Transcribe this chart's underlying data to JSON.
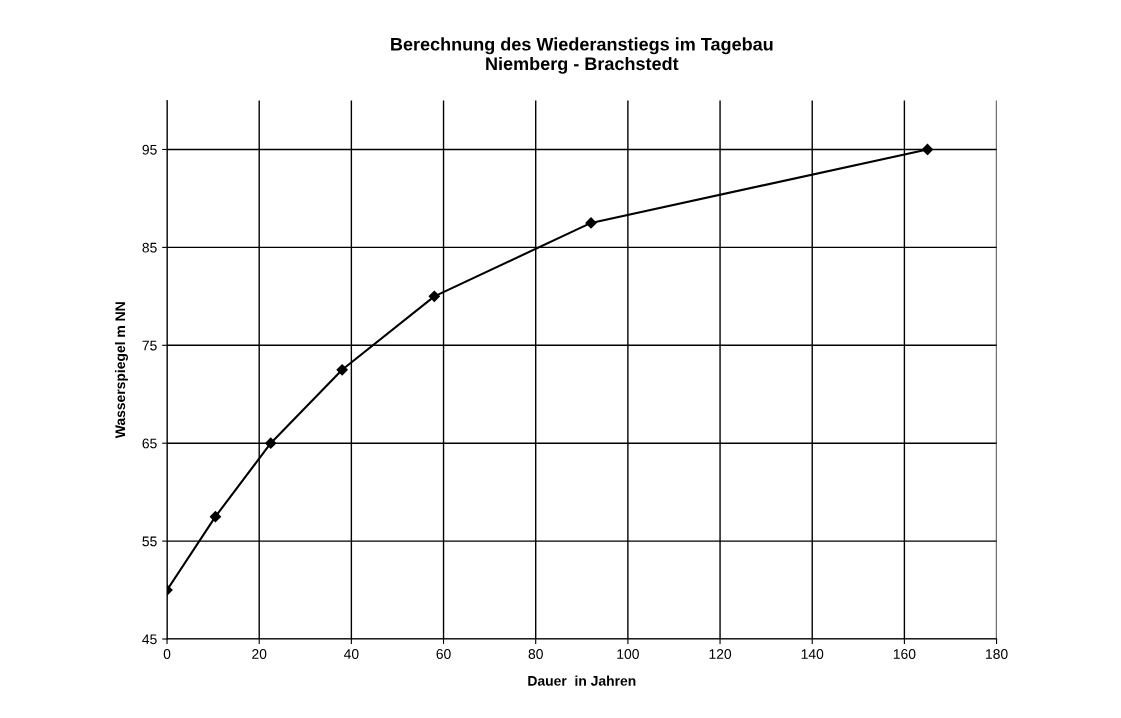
{
  "chart_data": {
    "type": "line",
    "title": "Berechnung des Wiederanstiegs im Tagebau\nNiemberg - Brachstedt",
    "xlabel": "Dauer  in Jahren",
    "ylabel": "Wasserspiegel m NN",
    "series": [
      {
        "color": "#000000",
        "x": [
          0,
          10.5,
          22.5,
          38,
          58,
          92,
          165
        ],
        "values": [
          50,
          57.5,
          65,
          72.5,
          80,
          87.5,
          95
        ]
      }
    ],
    "xlim": [
      0,
      180
    ],
    "xticks": [
      0,
      20,
      40,
      60,
      80,
      100,
      120,
      140,
      160,
      180
    ],
    "ylim": [
      45,
      100
    ],
    "yticks": [
      45,
      55,
      65,
      75,
      85,
      95
    ],
    "grid": true,
    "marker": "diamond",
    "line_style": "solid"
  }
}
